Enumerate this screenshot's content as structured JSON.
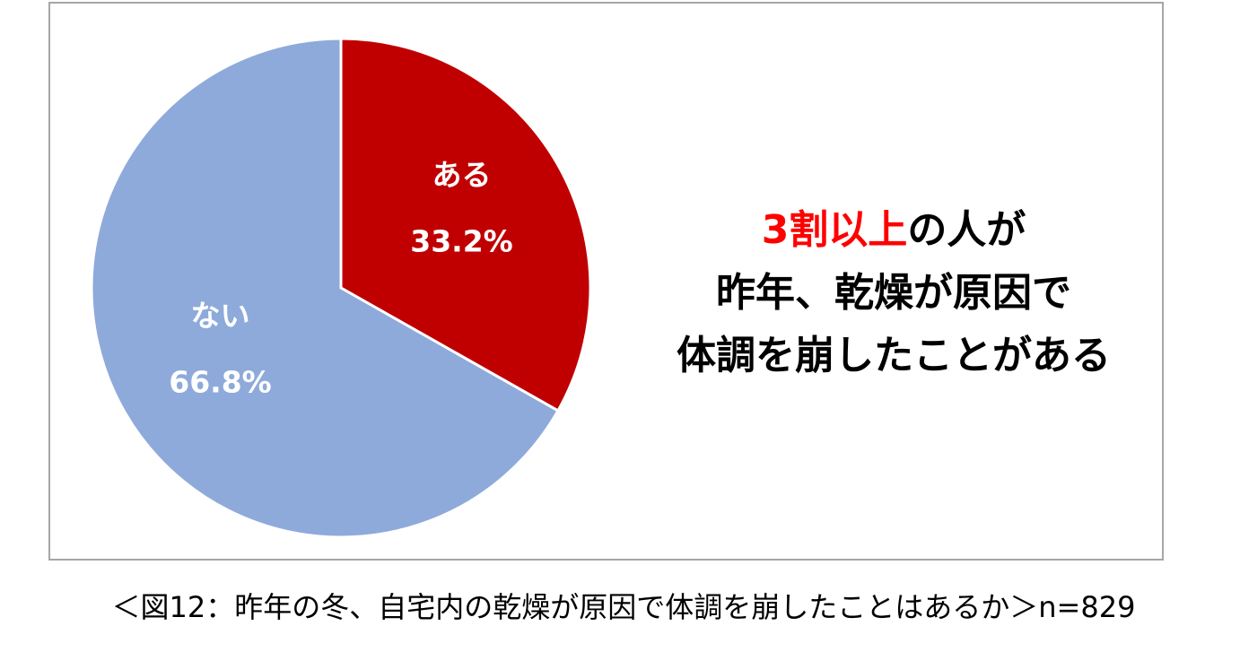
{
  "chart_data": {
    "type": "pie",
    "start_angle": "12 o'clock, clockwise",
    "slices": [
      {
        "label": "ある",
        "value": 33.2,
        "value_label": "33.2%",
        "color": "#c00000"
      },
      {
        "label": "ない",
        "value": 66.8,
        "value_label": "66.8%",
        "color": "#8eaadb"
      }
    ],
    "legend": "none",
    "border_color": "#a6a6a6"
  },
  "headline": {
    "line1_highlight": "3割以上",
    "line1_rest": "の人が",
    "line2": "昨年、乾燥が原因で",
    "line3": "体調を崩したことがある",
    "highlight_color": "#ff0000"
  },
  "caption": "＜図12：昨年の冬、自宅内の乾燥が原因で体調を崩したことはあるか＞n=829"
}
